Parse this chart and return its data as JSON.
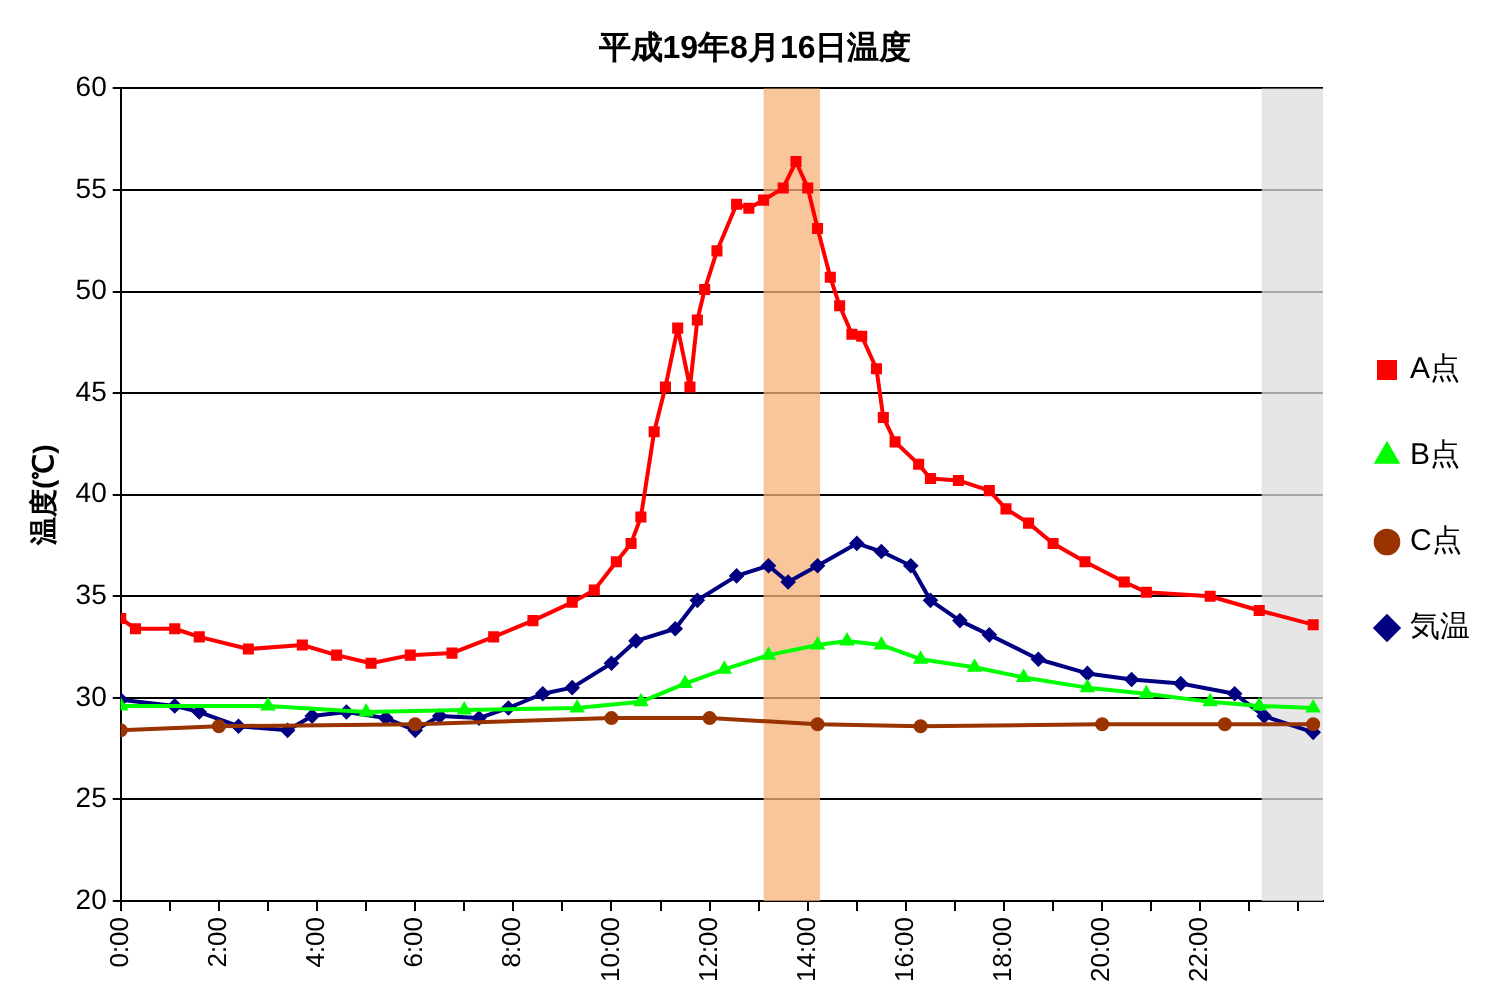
{
  "chart_data": {
    "type": "line",
    "title": "平成19年8月16日温度",
    "ylabel": "温度(℃)",
    "xlim": [
      0,
      24.5
    ],
    "xticks": [
      {
        "value": 0,
        "label": "0:00"
      },
      {
        "value": 1,
        "label": null
      },
      {
        "value": 2,
        "label": "2:00"
      },
      {
        "value": 3,
        "label": null
      },
      {
        "value": 4,
        "label": "4:00"
      },
      {
        "value": 5,
        "label": null
      },
      {
        "value": 6,
        "label": "6:00"
      },
      {
        "value": 7,
        "label": null
      },
      {
        "value": 8,
        "label": "8:00"
      },
      {
        "value": 9,
        "label": null
      },
      {
        "value": 10,
        "label": "10:00"
      },
      {
        "value": 11,
        "label": null
      },
      {
        "value": 12,
        "label": "12:00"
      },
      {
        "value": 13,
        "label": null
      },
      {
        "value": 14,
        "label": "14:00"
      },
      {
        "value": 15,
        "label": null
      },
      {
        "value": 16,
        "label": "16:00"
      },
      {
        "value": 17,
        "label": null
      },
      {
        "value": 18,
        "label": "18:00"
      },
      {
        "value": 19,
        "label": null
      },
      {
        "value": 20,
        "label": "20:00"
      },
      {
        "value": 21,
        "label": null
      },
      {
        "value": 22,
        "label": "22:00"
      },
      {
        "value": 23,
        "label": null
      },
      {
        "value": 24,
        "label": null
      }
    ],
    "ylim": [
      20,
      60
    ],
    "yticks": [
      20,
      25,
      30,
      35,
      40,
      45,
      50,
      55,
      60
    ],
    "grid": "y",
    "legend": "right",
    "line_style": "solid",
    "bands": [
      {
        "axis": "x",
        "from": 13.1,
        "to": 14.25,
        "color": "#f7b27a"
      },
      {
        "axis": "x",
        "from": 23.25,
        "to": 24.5,
        "color": "#dddddd"
      }
    ],
    "series": [
      {
        "name": "A点",
        "color": "#ff0000",
        "marker": "square",
        "x": [
          0,
          0.3,
          1.1,
          1.6,
          2.6,
          3.7,
          4.4,
          5.1,
          5.9,
          6.75,
          7.6,
          8.4,
          9.2,
          9.65,
          10.1,
          10.4,
          10.6,
          10.87,
          11.1,
          11.35,
          11.6,
          11.75,
          11.9,
          12.15,
          12.55,
          12.8,
          13.1,
          13.5,
          13.76,
          14.0,
          14.2,
          14.46,
          14.65,
          14.9,
          15.1,
          15.4,
          15.54,
          15.78,
          16.26,
          16.5,
          17.07,
          17.7,
          18.04,
          18.5,
          19,
          19.65,
          20.45,
          20.9,
          22.2,
          23.2,
          24.3
        ],
        "values": [
          33.9,
          33.4,
          33.4,
          33.0,
          32.4,
          32.6,
          32.1,
          31.7,
          32.1,
          32.2,
          33.0,
          33.8,
          34.7,
          35.3,
          36.7,
          37.6,
          38.9,
          43.1,
          45.3,
          48.2,
          45.3,
          48.6,
          50.1,
          52.0,
          54.3,
          54.1,
          54.5,
          55.1,
          56.4,
          55.1,
          53.1,
          50.7,
          49.3,
          47.9,
          47.8,
          46.2,
          43.8,
          42.6,
          41.5,
          40.8,
          40.7,
          40.2,
          39.3,
          38.6,
          37.6,
          36.7,
          35.7,
          35.2,
          35.0,
          34.3,
          33.6
        ]
      },
      {
        "name": "B点",
        "color": "#00ff00",
        "marker": "triangle",
        "x": [
          0,
          3,
          5,
          7,
          9.3,
          10.6,
          11.5,
          12.3,
          13.2,
          14.2,
          14.8,
          15.5,
          16.3,
          17.4,
          18.4,
          19.7,
          20.9,
          22.2,
          23.2,
          24.3
        ],
        "values": [
          29.6,
          29.6,
          29.3,
          29.4,
          29.5,
          29.8,
          30.7,
          31.4,
          32.1,
          32.6,
          32.8,
          32.6,
          31.9,
          31.5,
          31.0,
          30.5,
          30.2,
          29.8,
          29.6,
          29.5
        ]
      },
      {
        "name": "C点",
        "color": "#993300",
        "marker": "circle",
        "x": [
          0,
          2,
          6,
          10,
          12,
          14.2,
          16.3,
          20,
          22.5,
          24.3
        ],
        "values": [
          28.4,
          28.6,
          28.7,
          29.0,
          29.0,
          28.7,
          28.6,
          28.7,
          28.7,
          28.7
        ]
      },
      {
        "name": "気温",
        "color": "#000080",
        "marker": "diamond",
        "x": [
          0,
          1.1,
          1.6,
          2.4,
          3.4,
          3.9,
          4.6,
          5.4,
          6,
          6.5,
          7.3,
          7.9,
          8.6,
          9.2,
          10,
          10.5,
          11.3,
          11.75,
          12.55,
          13.2,
          13.6,
          14.2,
          15.0,
          15.5,
          16.1,
          16.5,
          17.1,
          17.7,
          18.7,
          19.7,
          20.6,
          21.6,
          22.7,
          23.3,
          24.3
        ],
        "values": [
          29.9,
          29.6,
          29.3,
          28.6,
          28.4,
          29.1,
          29.3,
          29.0,
          28.4,
          29.1,
          29.0,
          29.5,
          30.2,
          30.5,
          31.7,
          32.8,
          33.4,
          34.8,
          36.0,
          36.5,
          35.7,
          36.5,
          37.6,
          37.2,
          36.5,
          34.8,
          33.8,
          33.1,
          31.9,
          31.2,
          30.9,
          30.7,
          30.2,
          29.1,
          28.3
        ]
      }
    ]
  }
}
